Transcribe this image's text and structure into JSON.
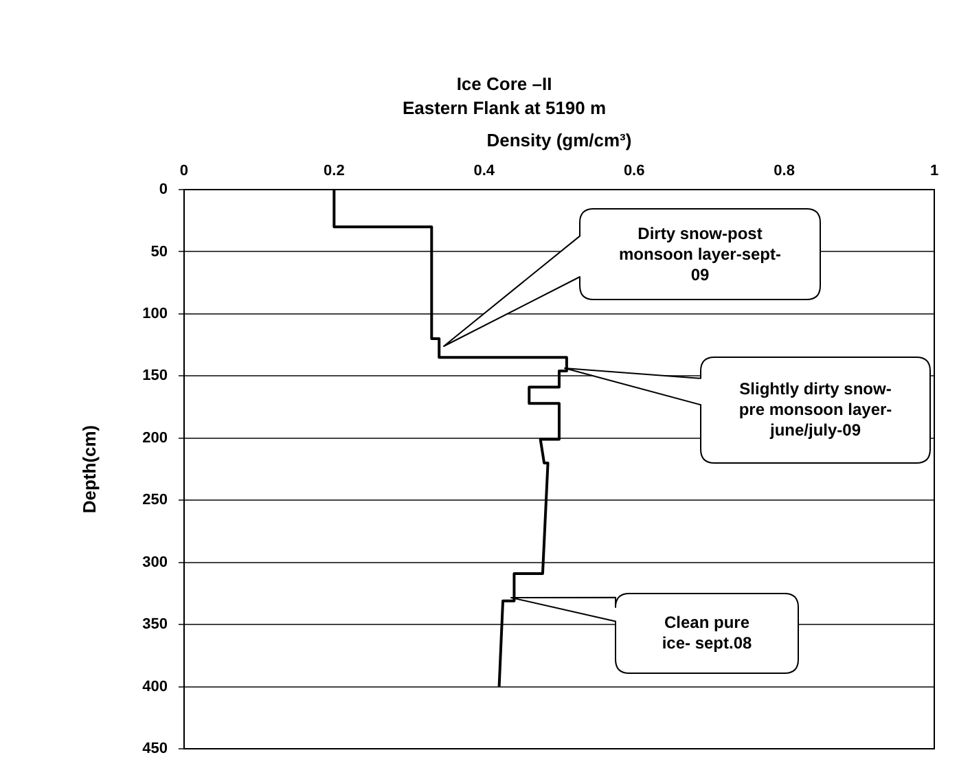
{
  "chart_data": {
    "type": "line",
    "title": "Ice Core –II",
    "subtitle": "Eastern Flank at 5190 m",
    "xlabel": "Density (gm/cm³)",
    "ylabel": "Depth(cm)",
    "series": [
      {
        "x": [
          0.2,
          0.2,
          0.33,
          0.33,
          0.34,
          0.34,
          0.51,
          0.51,
          0.5,
          0.5,
          0.46,
          0.46,
          0.5,
          0.5,
          0.475,
          0.48,
          0.485,
          0.478,
          0.44,
          0.44,
          0.425,
          0.42
        ],
        "values": [
          0,
          30,
          30,
          120,
          120,
          135,
          135,
          146,
          146,
          159,
          159,
          172,
          172,
          201,
          201,
          220,
          220,
          309,
          309,
          331,
          331,
          400
        ],
        "color": "#000000"
      }
    ],
    "xlim": [
      0,
      1
    ],
    "xticks": [
      0,
      0.2,
      0.4,
      0.6,
      0.8,
      1
    ],
    "ylim": [
      450,
      0
    ],
    "yticks": [
      0,
      50,
      100,
      150,
      200,
      250,
      300,
      350,
      400,
      450
    ],
    "grid": "y",
    "marker": "none",
    "line_style": "solid",
    "legend": false,
    "annotations": [
      "Dirty snow-post monsoon layer-sept-09",
      "Slightly dirty snow-pre monsoon layer-june/july-09",
      "Clean pure ice- sept.08"
    ]
  }
}
